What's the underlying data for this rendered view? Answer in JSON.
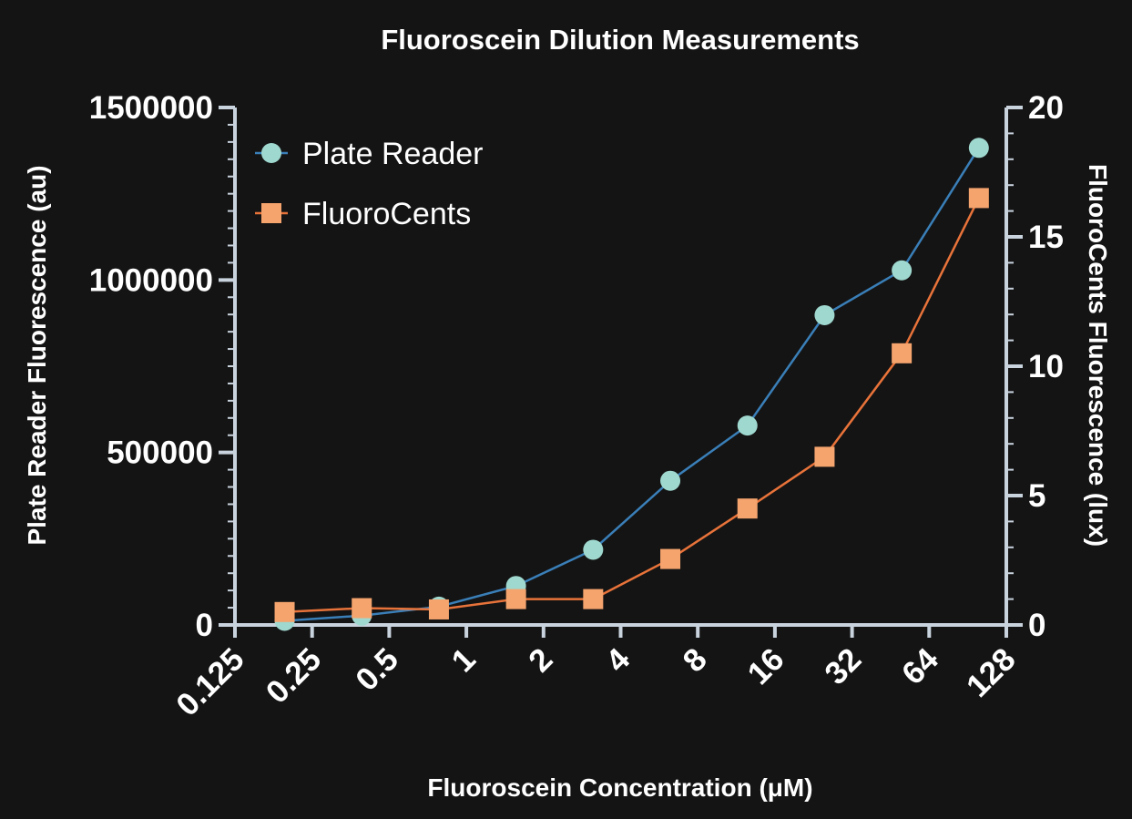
{
  "chart_data": {
    "type": "line",
    "title": "Fluoroscein Dilution Measurements",
    "xlabel": "Fluoroscein Concentration (μM)",
    "ylabel": "Plate Reader Fluorescence (au)",
    "y2label": "FluoroCents Fluorescence (lux)",
    "x_scale": "log2",
    "x_ticks": [
      "0.125",
      "0.25",
      "0.5",
      "1",
      "2",
      "4",
      "8",
      "16",
      "32",
      "64",
      "128"
    ],
    "x_tick_values": [
      0.125,
      0.25,
      0.5,
      1,
      2,
      4,
      8,
      16,
      32,
      64,
      128
    ],
    "x": [
      0.1953125,
      0.390625,
      0.78125,
      1.5625,
      3.125,
      6.25,
      12.5,
      25,
      50,
      100
    ],
    "xlim": [
      0.125,
      128
    ],
    "ylim": [
      0,
      1500000
    ],
    "y_ticks": [
      "0",
      "500000",
      "1000000",
      "1500000"
    ],
    "y_tick_values": [
      0,
      500000,
      1000000,
      1500000
    ],
    "y2lim": [
      0,
      20
    ],
    "y2_ticks": [
      "0",
      "5",
      "10",
      "15",
      "20"
    ],
    "y2_tick_values": [
      0,
      5,
      10,
      15,
      20
    ],
    "grid": false,
    "legend_position": "top-left",
    "series": [
      {
        "name": "Plate Reader",
        "axis": "left",
        "marker": "circle",
        "line_color": "#3a7fb8",
        "marker_color": "#9fd8cf",
        "values": [
          12000,
          27000,
          53000,
          113000,
          218000,
          418000,
          578000,
          898000,
          1028000,
          1383000
        ]
      },
      {
        "name": "FluoroCents",
        "axis": "right",
        "marker": "square",
        "line_color": "#e8733a",
        "marker_color": "#f5a46e",
        "values": [
          0.5,
          0.65,
          0.6,
          1.0,
          1.0,
          2.55,
          4.5,
          6.5,
          10.5,
          16.5
        ]
      }
    ]
  }
}
